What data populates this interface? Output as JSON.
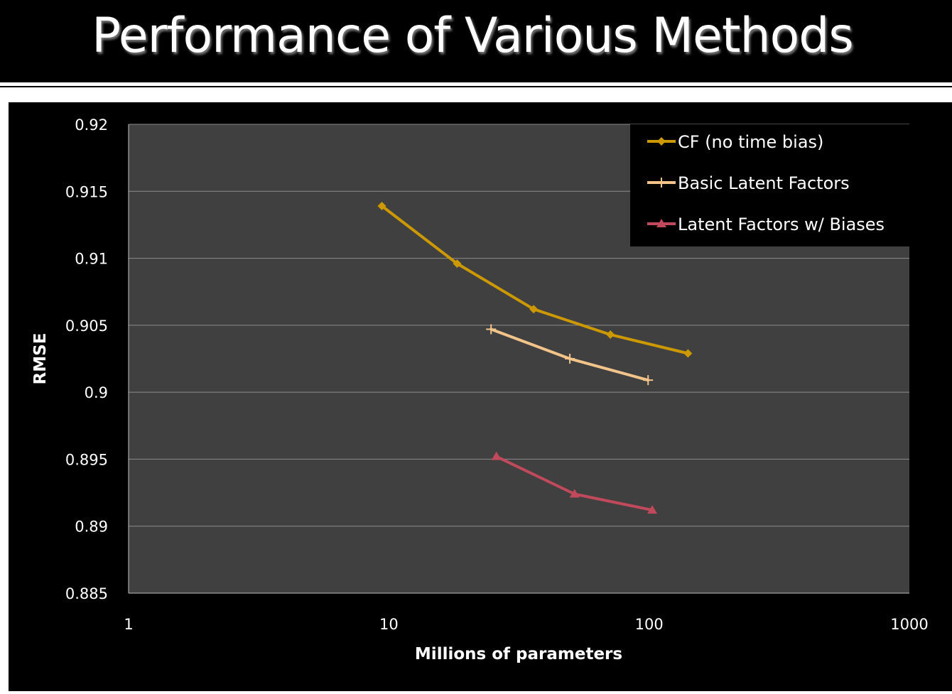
{
  "slide": {
    "title": "Performance of Various Methods"
  },
  "colors": {
    "background": "#000000",
    "plot_area": "#404040",
    "gridline": "#8c8c8c",
    "cf_series": "#cc9900",
    "basic_series": "#f2c48a",
    "biases_series": "#c0495b"
  },
  "chart_data": {
    "type": "line",
    "title": "",
    "xlabel": "Millions of parameters",
    "ylabel": "RMSE",
    "x_scale": "log",
    "xlim": [
      1,
      1000
    ],
    "ylim": [
      0.885,
      0.92
    ],
    "x_ticks": [
      1,
      10,
      100,
      1000
    ],
    "x_tick_labels": [
      "1",
      "10",
      "100",
      "1000"
    ],
    "y_ticks": [
      0.885,
      0.89,
      0.895,
      0.9,
      0.905,
      0.91,
      0.915,
      0.92
    ],
    "y_tick_labels": [
      "0.885",
      "0.89",
      "0.895",
      "0.9",
      "0.905",
      "0.91",
      "0.915",
      "0.92"
    ],
    "grid": "horizontal",
    "legend_position": "top-right",
    "series": [
      {
        "name": "CF (no time bias)",
        "marker": "diamond",
        "color": "#cc9900",
        "x": [
          9.4,
          18.3,
          36.0,
          71.0,
          141.0
        ],
        "y": [
          0.9139,
          0.9096,
          0.9062,
          0.9043,
          0.9029
        ]
      },
      {
        "name": "Basic Latent Factors",
        "marker": "plus",
        "color": "#f2c48a",
        "x": [
          24.7,
          49.6,
          99.1
        ],
        "y": [
          0.9047,
          0.9025,
          0.9009
        ]
      },
      {
        "name": "Latent Factors w/ Biases",
        "marker": "triangle",
        "color": "#c0495b",
        "x": [
          25.9,
          51.7,
          102.8
        ],
        "y": [
          0.8952,
          0.8924,
          0.8912
        ]
      }
    ]
  }
}
